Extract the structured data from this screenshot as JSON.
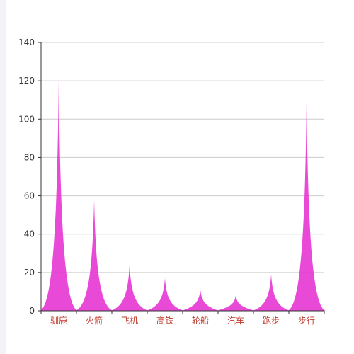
{
  "chart_data": {
    "type": "area",
    "style": "pictorial-spike",
    "categories": [
      "驯鹿",
      "火箭",
      "飞机",
      "高铁",
      "轮船",
      "汽车",
      "跑步",
      "步行"
    ],
    "values": [
      121,
      58,
      24,
      17,
      11,
      8,
      19,
      109
    ],
    "ylim": [
      0,
      140
    ],
    "yticks": [
      0,
      20,
      40,
      60,
      80,
      100,
      120,
      140
    ],
    "grid": true,
    "legend": "none",
    "colors": {
      "fill": "#e535d2",
      "grid": "#cccccc",
      "axis": "#333333",
      "category_label": "#c0392b"
    }
  }
}
